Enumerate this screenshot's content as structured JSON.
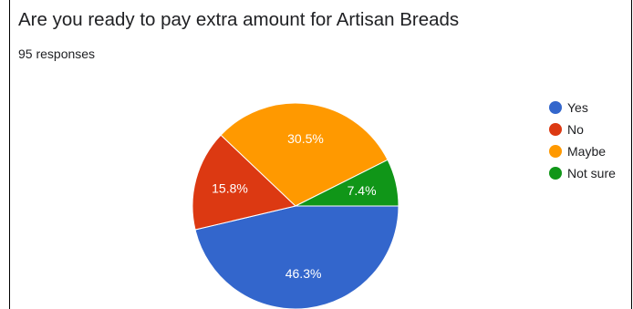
{
  "title": "Are you ready to pay extra amount for Artisan Breads",
  "subtitle": "95 responses",
  "chart_data": {
    "type": "pie",
    "categories": [
      "Yes",
      "No",
      "Maybe",
      "Not sure"
    ],
    "values": [
      46.3,
      15.8,
      30.5,
      7.4
    ],
    "value_labels": [
      "46.3%",
      "15.8%",
      "30.5%",
      "7.4%"
    ],
    "colors": [
      "#3366cc",
      "#dc3912",
      "#ff9900",
      "#109618"
    ],
    "legend": {
      "position": "right"
    }
  }
}
